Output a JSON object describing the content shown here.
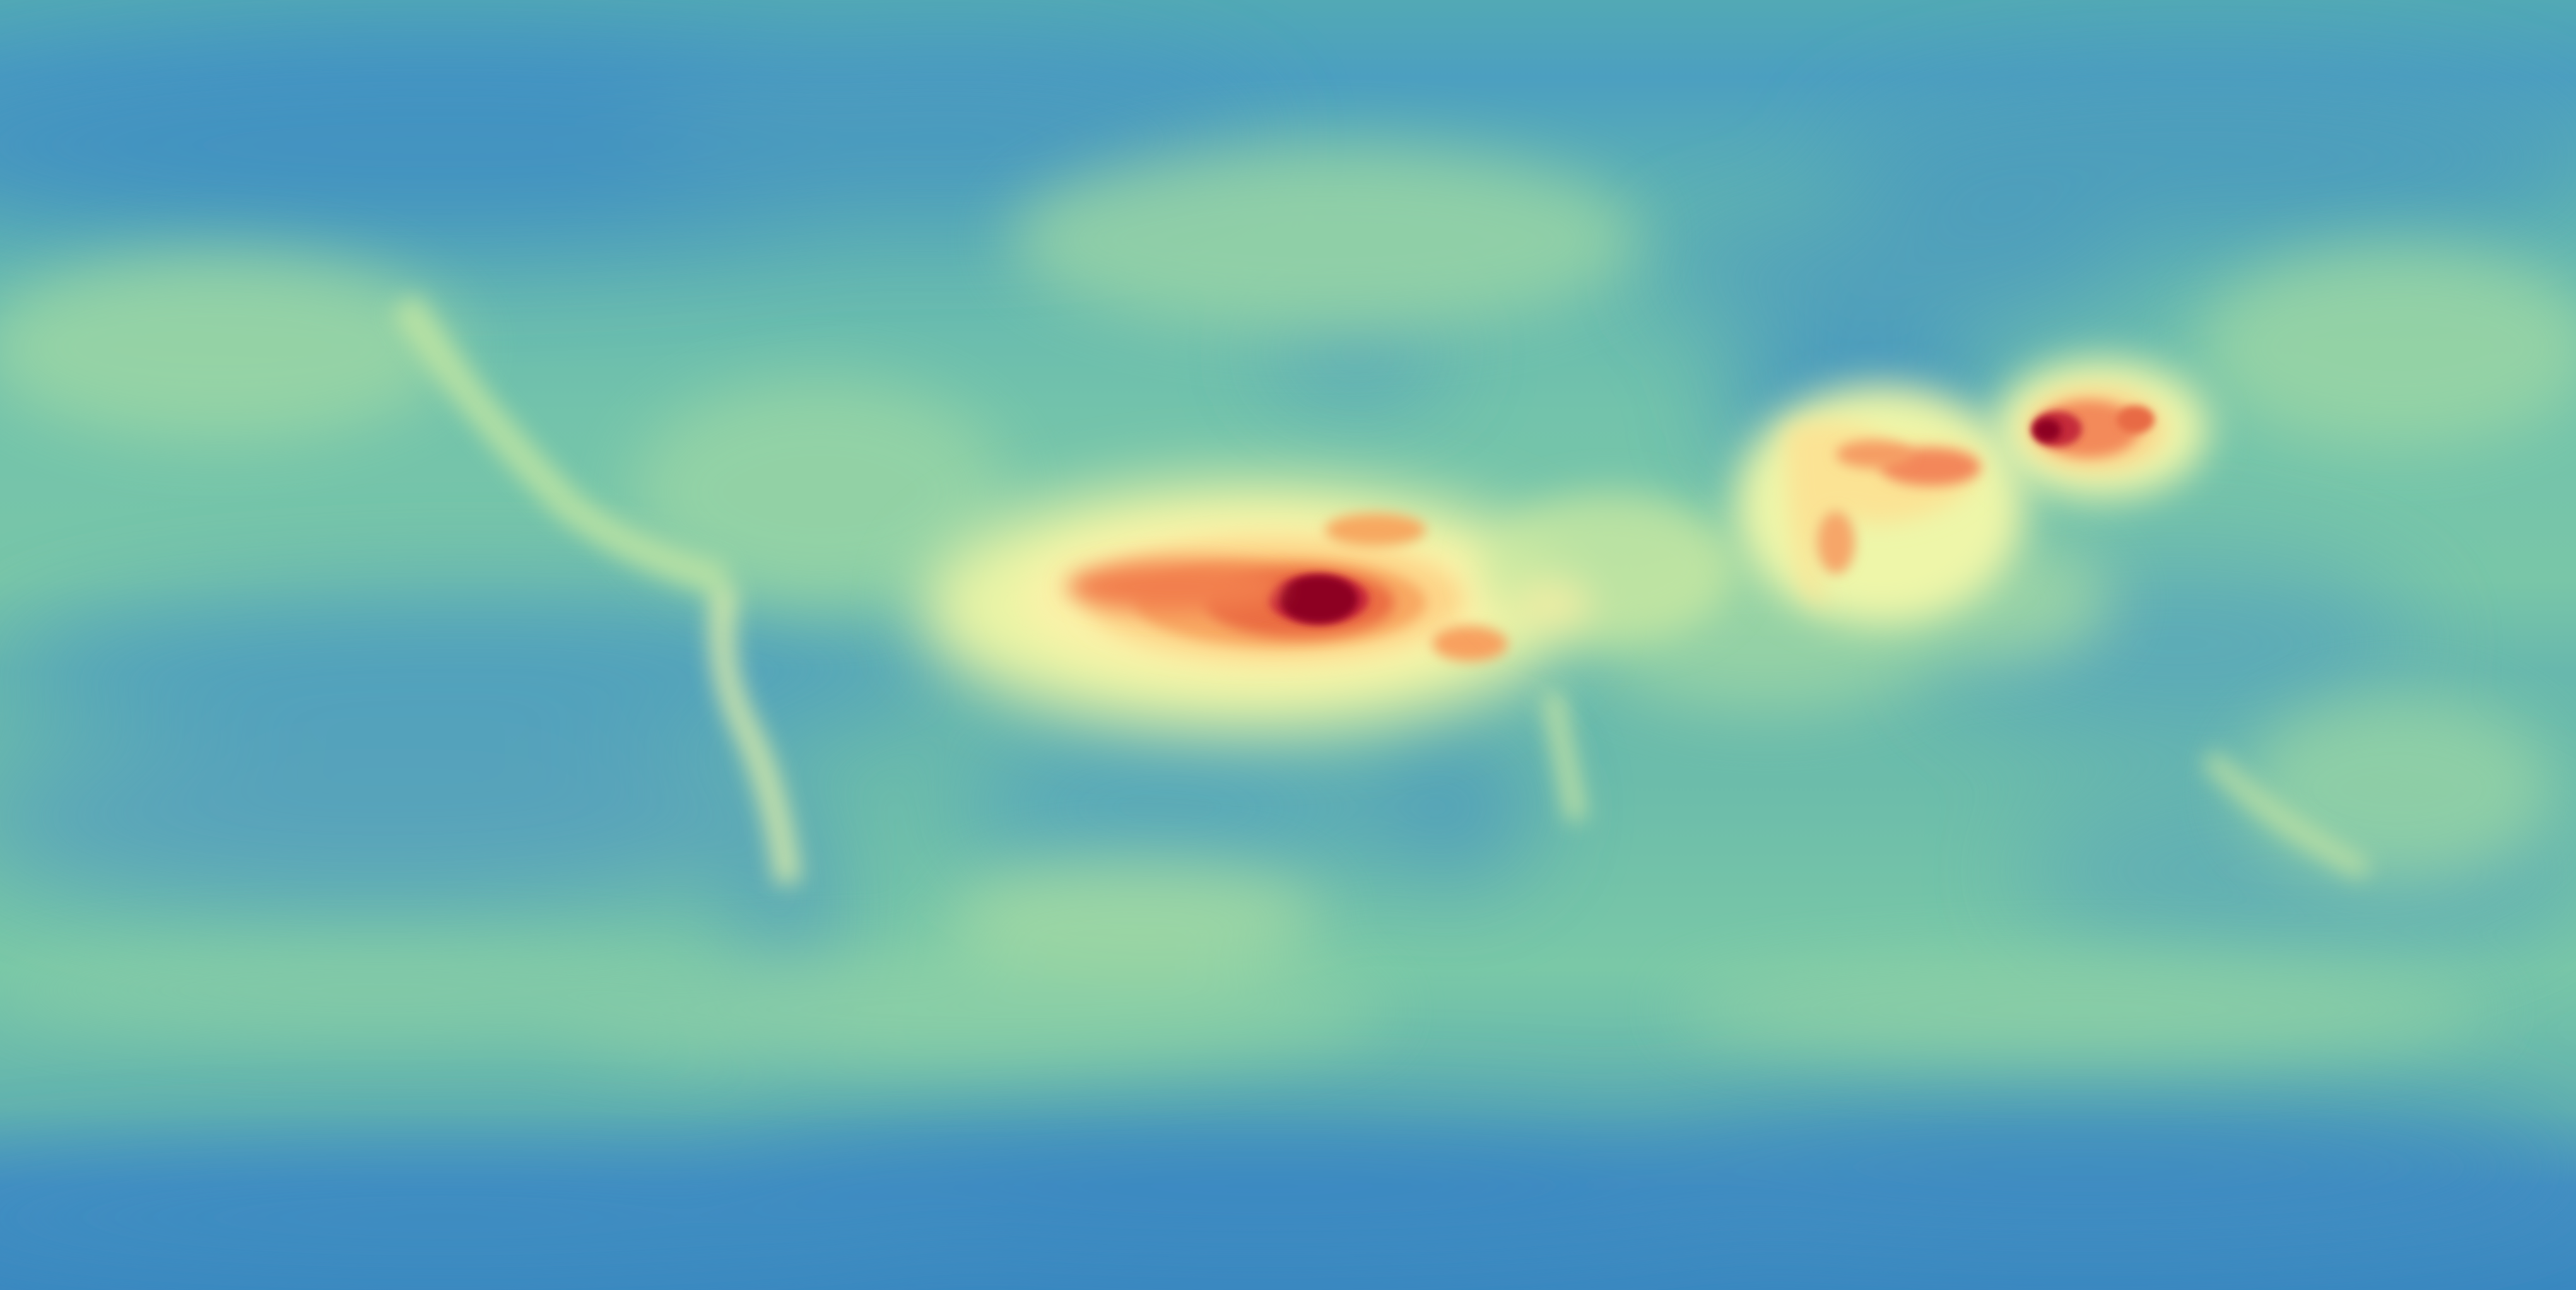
{
  "map": {
    "type": "global-heatmap",
    "projection": "equirectangular",
    "colormap": "Spectral_r",
    "palette": {
      "low": "#3a8fc1",
      "low_mid": "#5ab4b0",
      "mid": "#8fd1a6",
      "mid_high": "#f6f8b2",
      "high": "#f07a4c",
      "max": "#8d0024"
    },
    "features": [
      {
        "name": "saharan-dust-plume",
        "intensity": "very-high"
      },
      {
        "name": "indo-gangetic-plain-hotspot",
        "intensity": "high"
      },
      {
        "name": "east-china-hotspot",
        "intensity": "very-high"
      },
      {
        "name": "antarctic-low-field",
        "intensity": "low"
      },
      {
        "name": "pacific-low-field",
        "intensity": "low"
      }
    ]
  }
}
